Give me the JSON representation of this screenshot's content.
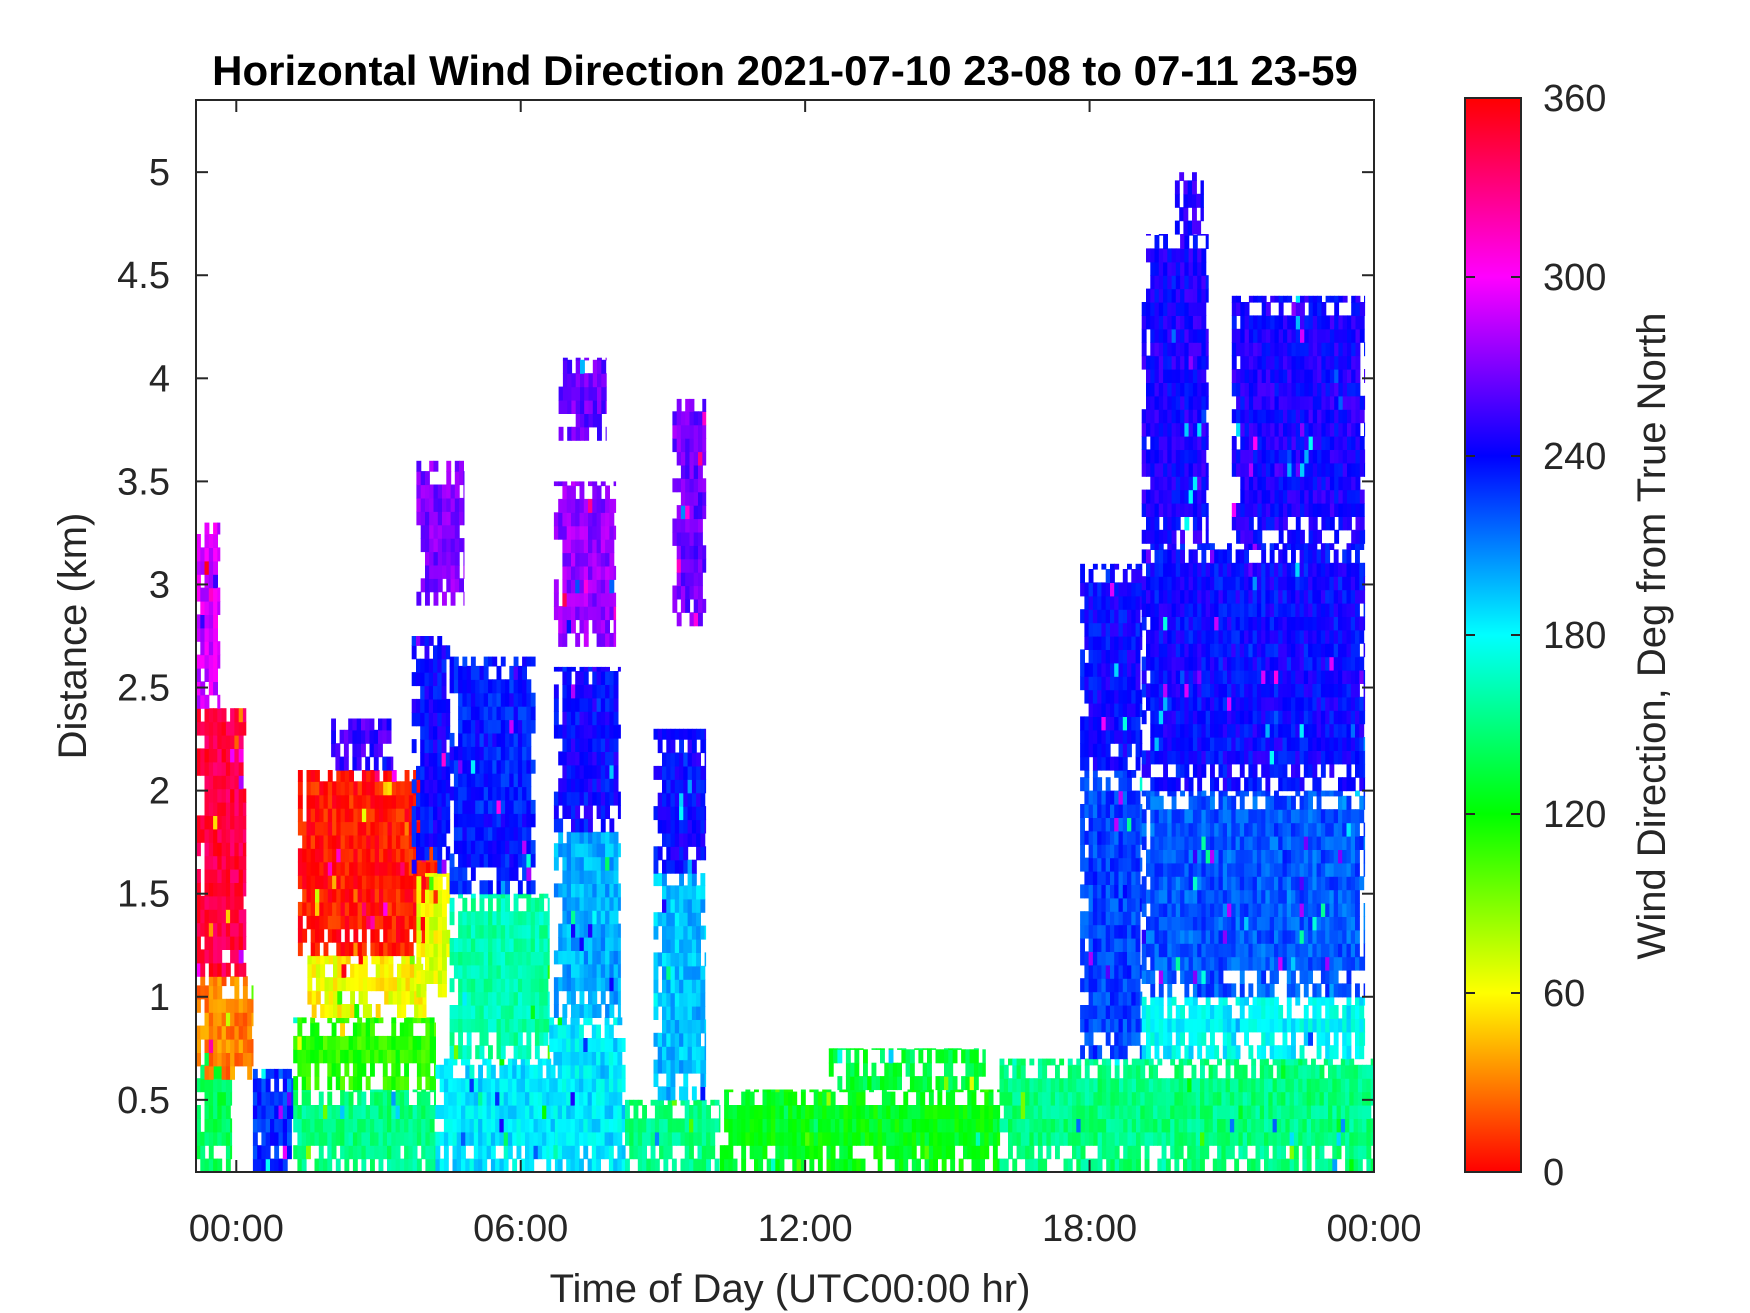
{
  "chart_data": {
    "type": "heatmap",
    "title": "Horizontal Wind Direction 2021-07-10 23-08 to 07-11 23-59",
    "xlabel": "Time of Day (UTC00:00 hr)",
    "ylabel": "Distance (km)",
    "xlim_hours": [
      -0.85,
      24.0
    ],
    "ylim": [
      0.15,
      5.35
    ],
    "x_ticks": [
      {
        "value": 0,
        "label": "00:00"
      },
      {
        "value": 6,
        "label": "06:00"
      },
      {
        "value": 12,
        "label": "12:00"
      },
      {
        "value": 18,
        "label": "18:00"
      },
      {
        "value": 24,
        "label": "00:00"
      }
    ],
    "y_ticks": [
      {
        "value": 0.5,
        "label": "0.5"
      },
      {
        "value": 1,
        "label": "1"
      },
      {
        "value": 1.5,
        "label": "1.5"
      },
      {
        "value": 2,
        "label": "2"
      },
      {
        "value": 2.5,
        "label": "2.5"
      },
      {
        "value": 3,
        "label": "3"
      },
      {
        "value": 3.5,
        "label": "3.5"
      },
      {
        "value": 4,
        "label": "4"
      },
      {
        "value": 4.5,
        "label": "4.5"
      },
      {
        "value": 5,
        "label": "5"
      }
    ],
    "colorbar": {
      "label": "Wind Direction, Deg from True North",
      "range": [
        0,
        360
      ],
      "ticks": [
        {
          "value": 0,
          "label": "0"
        },
        {
          "value": 60,
          "label": "60"
        },
        {
          "value": 120,
          "label": "120"
        },
        {
          "value": 180,
          "label": "180"
        },
        {
          "value": 240,
          "label": "240"
        },
        {
          "value": 300,
          "label": "300"
        },
        {
          "value": 360,
          "label": "360"
        }
      ],
      "colormap": "hsv",
      "color_stops": [
        "#ff0000",
        "#ffff00",
        "#00ff00",
        "#00ffff",
        "#0000ff",
        "#ff00ff",
        "#ff0000"
      ]
    },
    "grid": false,
    "regions": [
      {
        "t0": -0.85,
        "t1": -0.1,
        "h0": 0.15,
        "h1": 0.8,
        "dir": 140
      },
      {
        "t0": -0.85,
        "t1": 0.35,
        "h0": 0.6,
        "h1": 1.1,
        "dir": 30
      },
      {
        "t0": -0.85,
        "t1": 0.2,
        "h0": 1.1,
        "h1": 2.4,
        "dir": 345
      },
      {
        "t0": -0.85,
        "t1": -0.35,
        "h0": 2.4,
        "h1": 3.3,
        "dir": 290
      },
      {
        "t0": 0.35,
        "t1": 1.2,
        "h0": 0.15,
        "h1": 0.65,
        "dir": 230
      },
      {
        "t0": 1.2,
        "t1": 4.2,
        "h0": 0.15,
        "h1": 0.55,
        "dir": 150
      },
      {
        "t0": 1.2,
        "t1": 4.2,
        "h0": 0.55,
        "h1": 0.9,
        "dir": 110
      },
      {
        "t0": 1.5,
        "t1": 4.0,
        "h0": 0.9,
        "h1": 1.2,
        "dir": 60
      },
      {
        "t0": 1.3,
        "t1": 4.3,
        "h0": 1.2,
        "h1": 2.1,
        "dir": 5
      },
      {
        "t0": 2.0,
        "t1": 3.3,
        "h0": 2.1,
        "h1": 2.35,
        "dir": 255
      },
      {
        "t0": 3.8,
        "t1": 4.5,
        "h0": 1.0,
        "h1": 1.6,
        "dir": 65
      },
      {
        "t0": 3.7,
        "t1": 4.5,
        "h0": 1.6,
        "h1": 2.75,
        "dir": 240
      },
      {
        "t0": 4.2,
        "t1": 6.8,
        "h0": 0.15,
        "h1": 0.7,
        "dir": 185
      },
      {
        "t0": 4.5,
        "t1": 6.6,
        "h0": 0.7,
        "h1": 1.5,
        "dir": 160
      },
      {
        "t0": 4.5,
        "t1": 6.3,
        "h0": 1.5,
        "h1": 2.65,
        "dir": 235
      },
      {
        "t0": 6.6,
        "t1": 8.2,
        "h0": 0.15,
        "h1": 0.9,
        "dir": 185
      },
      {
        "t0": 6.7,
        "t1": 8.1,
        "h0": 0.9,
        "h1": 1.8,
        "dir": 200
      },
      {
        "t0": 6.7,
        "t1": 8.1,
        "h0": 1.8,
        "h1": 2.6,
        "dir": 240
      },
      {
        "t0": 6.7,
        "t1": 8.0,
        "h0": 2.7,
        "h1": 3.5,
        "dir": 275
      },
      {
        "t0": 6.8,
        "t1": 7.8,
        "h0": 3.7,
        "h1": 4.1,
        "dir": 265
      },
      {
        "t0": 3.8,
        "t1": 4.8,
        "h0": 2.9,
        "h1": 3.6,
        "dir": 270
      },
      {
        "t0": 8.2,
        "t1": 10.2,
        "h0": 0.15,
        "h1": 0.5,
        "dir": 150
      },
      {
        "t0": 8.8,
        "t1": 9.9,
        "h0": 0.5,
        "h1": 1.6,
        "dir": 195
      },
      {
        "t0": 8.8,
        "t1": 9.9,
        "h0": 1.6,
        "h1": 2.3,
        "dir": 240
      },
      {
        "t0": 9.2,
        "t1": 9.9,
        "h0": 2.8,
        "h1": 3.9,
        "dir": 265
      },
      {
        "t0": 10.2,
        "t1": 16.1,
        "h0": 0.15,
        "h1": 0.55,
        "dir": 125
      },
      {
        "t0": 12.5,
        "t1": 15.8,
        "h0": 0.55,
        "h1": 0.75,
        "dir": 135
      },
      {
        "t0": 16.1,
        "t1": 24.0,
        "h0": 0.15,
        "h1": 0.7,
        "dir": 150
      },
      {
        "t0": 17.8,
        "t1": 19.1,
        "h0": 0.7,
        "h1": 2.1,
        "dir": 225
      },
      {
        "t0": 17.8,
        "t1": 19.1,
        "h0": 2.1,
        "h1": 3.1,
        "dir": 240
      },
      {
        "t0": 19.1,
        "t1": 23.8,
        "h0": 0.7,
        "h1": 1.0,
        "dir": 180
      },
      {
        "t0": 19.1,
        "t1": 23.8,
        "h0": 1.0,
        "h1": 2.0,
        "dir": 220
      },
      {
        "t0": 19.1,
        "t1": 23.8,
        "h0": 2.0,
        "h1": 3.2,
        "dir": 240
      },
      {
        "t0": 19.1,
        "t1": 20.5,
        "h0": 3.2,
        "h1": 4.7,
        "dir": 245
      },
      {
        "t0": 21.0,
        "t1": 23.8,
        "h0": 3.2,
        "h1": 4.4,
        "dir": 245
      },
      {
        "t0": 19.8,
        "t1": 20.4,
        "h0": 4.7,
        "h1": 5.0,
        "dir": 248
      }
    ]
  }
}
